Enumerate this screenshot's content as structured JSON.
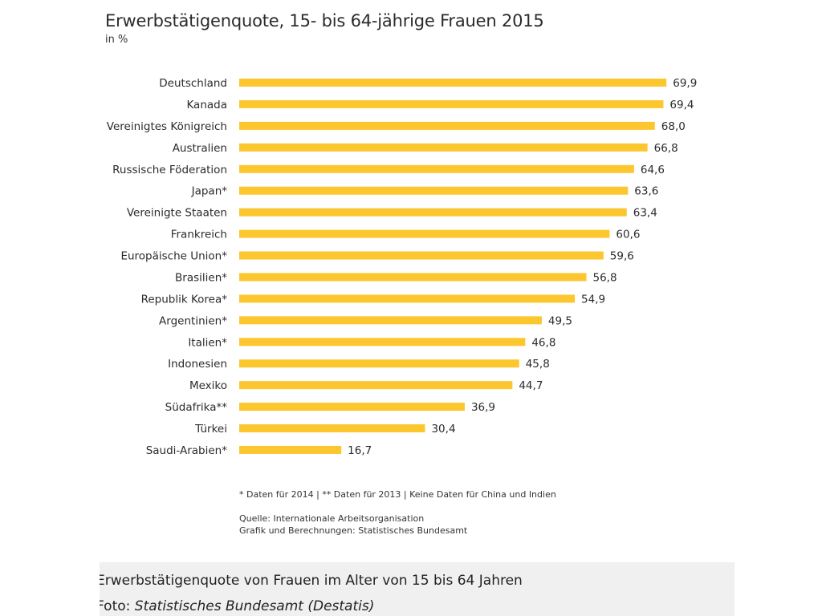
{
  "chart_data": {
    "type": "bar",
    "orientation": "horizontal",
    "title": "Erwerbstätigenquote, 15- bis 64-jährige Frauen 2015",
    "subtitle": "in %",
    "categories": [
      "Deutschland",
      "Kanada",
      "Vereinigtes Königreich",
      "Australien",
      "Russische Föderation",
      "Japan*",
      "Vereinigte Staaten",
      "Frankreich",
      "Europäische Union*",
      "Brasilien*",
      "Republik Korea*",
      "Argentinien*",
      "Italien*",
      "Indonesien",
      "Mexiko",
      "Südafrika**",
      "Türkei",
      "Saudi-Arabien*"
    ],
    "values": [
      69.9,
      69.4,
      68.0,
      66.8,
      64.6,
      63.6,
      63.4,
      60.6,
      59.6,
      56.8,
      54.9,
      49.5,
      46.8,
      45.8,
      44.7,
      36.9,
      30.4,
      16.7
    ],
    "value_labels": [
      "69,9",
      "69,4",
      "68,0",
      "66,8",
      "64,6",
      "63,6",
      "63,4",
      "60,6",
      "59,6",
      "56,8",
      "54,9",
      "49,5",
      "46,8",
      "45,8",
      "44,7",
      "36,9",
      "30,4",
      "16,7"
    ],
    "xlim": [
      0,
      70
    ],
    "bar_color": "#fcc62f",
    "grid": false,
    "legend": "none"
  },
  "footnote": "* Daten für 2014 | ** Daten für 2013 | Keine Daten für China und Indien",
  "source": "Quelle: Internationale Arbeitsorganisation",
  "credit": "Grafik und Berechnungen: Statistisches Bundesamt",
  "caption": {
    "text": "Erwerbstätigenquote von Frauen im Alter von 15 bis 64 Jahren",
    "photo_label": "Foto: ",
    "photo_credit": "Statistisches Bundesamt (Destatis)"
  }
}
